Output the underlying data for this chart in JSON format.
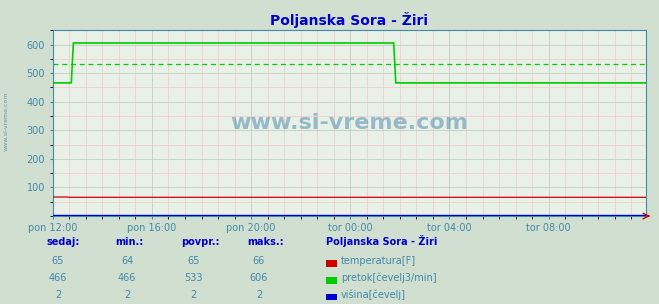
{
  "title": "Poljanska Sora - Žiri",
  "bg_color": "#d0dfd0",
  "plot_bg_color": "#e8f0e8",
  "grid_color_major": "#c0d0c0",
  "grid_color_minor": "#f0c8c8",
  "title_color": "#0000cc",
  "axis_color": "#4488aa",
  "tick_color": "#4488aa",
  "ylim": [
    0,
    650
  ],
  "yticks": [
    100,
    200,
    300,
    400,
    500,
    600
  ],
  "xlim": [
    0,
    287
  ],
  "xtick_labels": [
    "pon 12:00",
    "pon 16:00",
    "pon 20:00",
    "tor 00:00",
    "tor 04:00",
    "tor 08:00"
  ],
  "xtick_positions": [
    0,
    48,
    96,
    144,
    192,
    240
  ],
  "watermark": "www.si-vreme.com",
  "watermark_color": "#4488aa",
  "temp_color": "#cc0000",
  "flow_color": "#00cc00",
  "height_color": "#0000cc",
  "avg_flow_color": "#00cc00",
  "temp_value": 65,
  "flow_avg": 533,
  "flow_spike_start": 10,
  "flow_spike_end": 166,
  "flow_spike_value": 606,
  "flow_base_start": 8,
  "flow_base_value": 466,
  "height_value": 2,
  "legend_title": "Poljanska Sora - Žiri",
  "legend_labels": [
    "temperatura[F]",
    "pretok[čevelj3/min]",
    "višina[čevelj]"
  ],
  "legend_colors": [
    "#cc0000",
    "#00cc00",
    "#0000cc"
  ],
  "table_headers": [
    "sedaj:",
    "min.:",
    "povpr.:",
    "maks.:"
  ],
  "table_values": [
    [
      65,
      64,
      65,
      66
    ],
    [
      466,
      466,
      533,
      606
    ],
    [
      2,
      2,
      2,
      2
    ]
  ],
  "n_points": 288
}
